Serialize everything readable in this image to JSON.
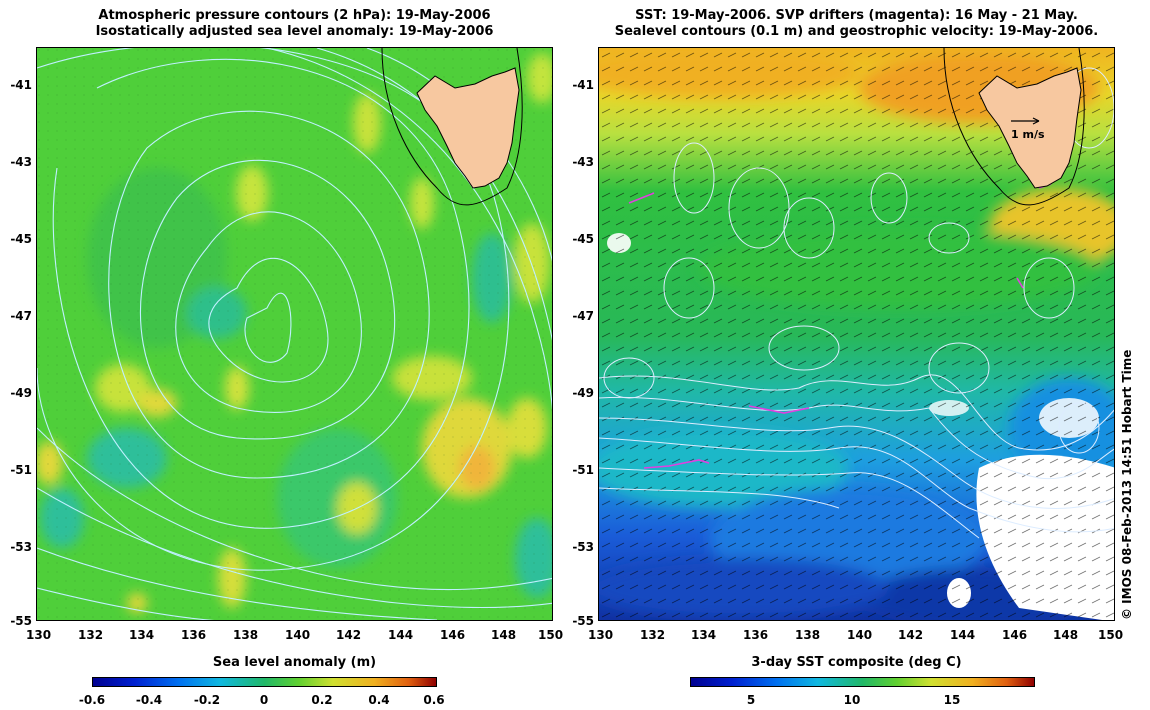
{
  "left_panel": {
    "title_line1": "Atmospheric pressure contours (2 hPa): 19-May-2006",
    "title_line2": "Isostatically adjusted sea level anomaly: 19-May-2006",
    "x_ticks": [
      "130",
      "132",
      "134",
      "136",
      "138",
      "140",
      "142",
      "144",
      "146",
      "148",
      "150"
    ],
    "y_ticks": [
      "-41",
      "-43",
      "-45",
      "-47",
      "-49",
      "-51",
      "-53",
      "-55"
    ],
    "colorbar": {
      "title": "Sea level anomaly (m)",
      "ticks": [
        "-0.6",
        "-0.4",
        "-0.2",
        "0",
        "0.2",
        "0.4",
        "0.6"
      ],
      "range": [
        -0.6,
        0.6
      ]
    }
  },
  "right_panel": {
    "title_line1": "SST: 19-May-2006. SVP drifters (magenta): 16 May - 21 May.",
    "title_line2": "Sealevel contours (0.1 m) and geostrophic velocity: 19-May-2006.",
    "x_ticks": [
      "130",
      "132",
      "134",
      "136",
      "138",
      "140",
      "142",
      "144",
      "146",
      "148",
      "150"
    ],
    "y_ticks": [
      "-41",
      "-43",
      "-45",
      "-47",
      "-49",
      "-51",
      "-53",
      "-55"
    ],
    "velocity_scale_label": "1 m/s",
    "colorbar": {
      "title": "3-day SST composite (deg C)",
      "ticks": [
        "5",
        "10",
        "15"
      ],
      "range": [
        2,
        19
      ]
    }
  },
  "copyright": "© IMOS 08-Feb-2013 14:51 Hobart Time",
  "colors": {
    "land": "#f7c8a0",
    "sla_background": "#4fcf3a",
    "pressure_contour": "#bff0ff",
    "drifter": "#e040e0"
  },
  "map_extent": {
    "lon": [
      130,
      150
    ],
    "lat": [
      -55,
      -40.1
    ]
  }
}
